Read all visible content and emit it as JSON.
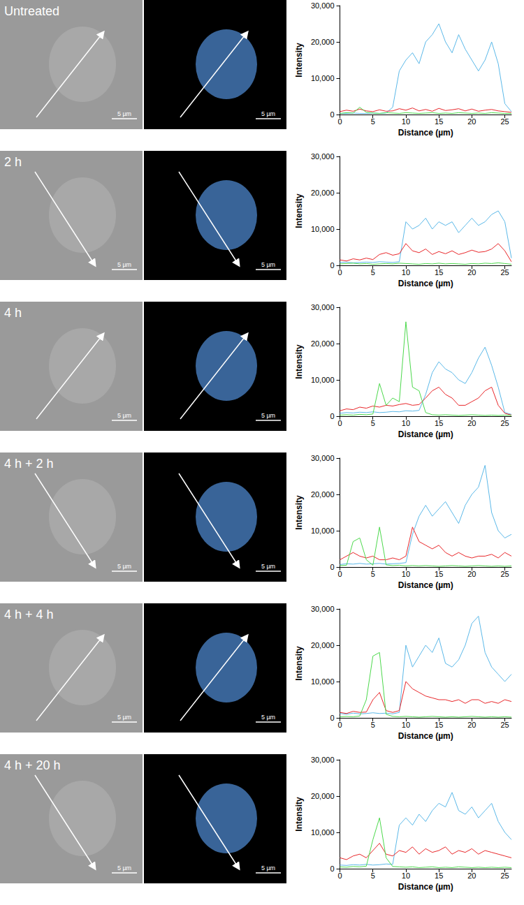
{
  "scale_bar": "5 µm",
  "chart_data": [
    {
      "type": "line",
      "title": "Untreated",
      "x_label": "Distance (µm)",
      "y_label": "Intensity",
      "x": [
        0,
        1,
        2,
        3,
        4,
        5,
        6,
        7,
        8,
        9,
        10,
        11,
        12,
        13,
        14,
        15,
        16,
        17,
        18,
        19,
        20,
        21,
        22,
        23,
        24,
        25,
        26
      ],
      "xlim": [
        0,
        26
      ],
      "xticks": [
        0,
        5,
        10,
        15,
        20,
        25
      ],
      "ylim": [
        0,
        30000
      ],
      "yticks": [
        0,
        10000,
        20000,
        30000
      ],
      "series": [
        {
          "color": "#5bb8e8",
          "values": [
            300,
            300,
            400,
            300,
            300,
            400,
            300,
            400,
            2000,
            12000,
            15000,
            17000,
            14000,
            20000,
            22000,
            25000,
            20000,
            17000,
            22000,
            18000,
            15000,
            12000,
            15000,
            20000,
            14000,
            3000,
            800
          ]
        },
        {
          "color": "#e8272a",
          "values": [
            800,
            1200,
            900,
            1500,
            1000,
            800,
            1300,
            900,
            1000,
            1600,
            1200,
            1800,
            1000,
            1400,
            900,
            1700,
            1100,
            1300,
            1600,
            1000,
            1500,
            900,
            1200,
            1400,
            1000,
            800,
            600
          ]
        },
        {
          "color": "#4cd84c",
          "values": [
            300,
            500,
            400,
            2000,
            600,
            400,
            300,
            500,
            400,
            300,
            500,
            400,
            300,
            400,
            500,
            300,
            400,
            300,
            500,
            400,
            300,
            400,
            300,
            500,
            400,
            300,
            300
          ]
        }
      ]
    },
    {
      "type": "line",
      "title": "2 h",
      "x_label": "Distance (µm)",
      "y_label": "Intensity",
      "x": [
        0,
        1,
        2,
        3,
        4,
        5,
        6,
        7,
        8,
        9,
        10,
        11,
        12,
        13,
        14,
        15,
        16,
        17,
        18,
        19,
        20,
        21,
        22,
        23,
        24,
        25,
        26
      ],
      "xlim": [
        0,
        26
      ],
      "xticks": [
        0,
        5,
        10,
        15,
        20,
        25
      ],
      "ylim": [
        0,
        30000
      ],
      "yticks": [
        0,
        10000,
        20000,
        30000
      ],
      "series": [
        {
          "color": "#5bb8e8",
          "values": [
            800,
            900,
            700,
            800,
            900,
            800,
            1000,
            900,
            800,
            1000,
            12000,
            10000,
            11000,
            13000,
            10000,
            12000,
            11000,
            12000,
            9000,
            11000,
            13000,
            11000,
            12000,
            14000,
            15000,
            12000,
            2000
          ]
        },
        {
          "color": "#e8272a",
          "values": [
            1500,
            1200,
            1800,
            1500,
            2000,
            1600,
            3000,
            3500,
            2800,
            3200,
            6000,
            4000,
            3500,
            4500,
            3000,
            3800,
            3200,
            4000,
            3000,
            3500,
            4200,
            3600,
            3800,
            4500,
            6000,
            4000,
            1000
          ]
        },
        {
          "color": "#4cd84c",
          "values": [
            400,
            500,
            600,
            400,
            500,
            300,
            400,
            500,
            400,
            600,
            500,
            400,
            300,
            500,
            400,
            600,
            400,
            500,
            400,
            300,
            500,
            400,
            600,
            500,
            700,
            500,
            300
          ]
        }
      ]
    },
    {
      "type": "line",
      "title": "4 h",
      "x_label": "Distance (µm)",
      "y_label": "Intensity",
      "x": [
        0,
        1,
        2,
        3,
        4,
        5,
        6,
        7,
        8,
        9,
        10,
        11,
        12,
        13,
        14,
        15,
        16,
        17,
        18,
        19,
        20,
        21,
        22,
        23,
        24,
        25,
        26
      ],
      "xlim": [
        0,
        26
      ],
      "xticks": [
        0,
        5,
        10,
        15,
        20,
        25
      ],
      "ylim": [
        0,
        30000
      ],
      "yticks": [
        0,
        10000,
        20000,
        30000
      ],
      "series": [
        {
          "color": "#5bb8e8",
          "values": [
            800,
            1000,
            900,
            1100,
            1000,
            1200,
            1000,
            1100,
            1300,
            1200,
            1500,
            1400,
            1600,
            6000,
            12000,
            15000,
            13000,
            12000,
            10000,
            9000,
            12000,
            16000,
            19000,
            14000,
            8000,
            1000,
            500
          ]
        },
        {
          "color": "#e8272a",
          "values": [
            1500,
            2000,
            1800,
            2500,
            2200,
            2800,
            2500,
            3000,
            2800,
            3200,
            3500,
            3000,
            3200,
            5000,
            7000,
            8000,
            6000,
            5000,
            3000,
            3000,
            4000,
            5000,
            7000,
            8000,
            3000,
            800,
            300
          ]
        },
        {
          "color": "#4cd84c",
          "values": [
            300,
            400,
            300,
            500,
            400,
            600,
            9000,
            3000,
            5000,
            4000,
            26000,
            8000,
            7000,
            1000,
            400,
            300,
            400,
            300,
            200,
            300,
            400,
            300,
            200,
            300,
            200,
            300,
            200
          ]
        }
      ]
    },
    {
      "type": "line",
      "title": "4 h + 2 h",
      "x_label": "Distance (µm)",
      "y_label": "Intensity",
      "x": [
        0,
        1,
        2,
        3,
        4,
        5,
        6,
        7,
        8,
        9,
        10,
        11,
        12,
        13,
        14,
        15,
        16,
        17,
        18,
        19,
        20,
        21,
        22,
        23,
        24,
        25,
        26
      ],
      "xlim": [
        0,
        26
      ],
      "xticks": [
        0,
        5,
        10,
        15,
        20,
        25
      ],
      "ylim": [
        0,
        30000
      ],
      "yticks": [
        0,
        10000,
        20000,
        30000
      ],
      "series": [
        {
          "color": "#5bb8e8",
          "values": [
            700,
            900,
            800,
            1000,
            800,
            900,
            1000,
            800,
            900,
            1000,
            1200,
            9000,
            14000,
            17000,
            14000,
            16000,
            18000,
            15000,
            12000,
            17000,
            20000,
            22000,
            28000,
            15000,
            10000,
            8000,
            9000
          ]
        },
        {
          "color": "#e8272a",
          "values": [
            2000,
            3000,
            4000,
            3000,
            2500,
            3000,
            2000,
            2000,
            2500,
            2000,
            3000,
            11000,
            7000,
            6000,
            5000,
            6000,
            4000,
            3000,
            4000,
            3000,
            2500,
            3000,
            3000,
            3500,
            2500,
            4000,
            3000
          ]
        },
        {
          "color": "#4cd84c",
          "values": [
            400,
            500,
            7000,
            8000,
            2000,
            500,
            11000,
            600,
            400,
            500,
            300,
            400,
            300,
            400,
            300,
            200,
            300,
            400,
            300,
            200,
            300,
            400,
            300,
            200,
            300,
            200,
            300
          ]
        }
      ]
    },
    {
      "type": "line",
      "title": "4 h + 4 h",
      "x_label": "Distance (µm)",
      "y_label": "Intensity",
      "x": [
        0,
        1,
        2,
        3,
        4,
        5,
        6,
        7,
        8,
        9,
        10,
        11,
        12,
        13,
        14,
        15,
        16,
        17,
        18,
        19,
        20,
        21,
        22,
        23,
        24,
        25,
        26
      ],
      "xlim": [
        0,
        26
      ],
      "xticks": [
        0,
        5,
        10,
        15,
        20,
        25
      ],
      "ylim": [
        0,
        30000
      ],
      "yticks": [
        0,
        10000,
        20000,
        30000
      ],
      "series": [
        {
          "color": "#5bb8e8",
          "values": [
            1200,
            1000,
            1300,
            1100,
            1200,
            1400,
            1200,
            1300,
            1100,
            1500,
            20000,
            14000,
            17000,
            20000,
            18000,
            22000,
            15000,
            14000,
            16000,
            20000,
            26000,
            28000,
            18000,
            14000,
            12000,
            10000,
            12000
          ]
        },
        {
          "color": "#e8272a",
          "values": [
            1500,
            1200,
            1800,
            1500,
            1600,
            5000,
            7000,
            2000,
            1500,
            2000,
            10000,
            8000,
            7000,
            6000,
            5500,
            5000,
            5000,
            4500,
            5000,
            4000,
            5000,
            5000,
            4000,
            4500,
            4000,
            5000,
            4500
          ]
        },
        {
          "color": "#4cd84c",
          "values": [
            300,
            400,
            300,
            500,
            5000,
            17000,
            18000,
            1000,
            400,
            300,
            400,
            300,
            200,
            300,
            400,
            300,
            200,
            300,
            200,
            300,
            400,
            300,
            200,
            300,
            200,
            300,
            200
          ]
        }
      ]
    },
    {
      "type": "line",
      "title": "4 h + 20 h",
      "x_label": "Distance (µm)",
      "y_label": "Intensity",
      "x": [
        0,
        1,
        2,
        3,
        4,
        5,
        6,
        7,
        8,
        9,
        10,
        11,
        12,
        13,
        14,
        15,
        16,
        17,
        18,
        19,
        20,
        21,
        22,
        23,
        24,
        25,
        26
      ],
      "xlim": [
        0,
        26
      ],
      "xticks": [
        0,
        5,
        10,
        15,
        20,
        25
      ],
      "ylim": [
        0,
        30000
      ],
      "yticks": [
        0,
        10000,
        20000,
        30000
      ],
      "series": [
        {
          "color": "#5bb8e8",
          "values": [
            1000,
            900,
            1100,
            1000,
            1200,
            1000,
            1100,
            1300,
            1200,
            12000,
            14000,
            12000,
            15000,
            13000,
            16000,
            18000,
            17000,
            21000,
            16000,
            15000,
            17000,
            14000,
            16000,
            18000,
            13000,
            10000,
            8000
          ]
        },
        {
          "color": "#e8272a",
          "values": [
            3000,
            2500,
            3500,
            4000,
            3000,
            5000,
            7000,
            4000,
            3500,
            5000,
            4500,
            6000,
            4000,
            5500,
            4500,
            5000,
            6000,
            4000,
            5000,
            4500,
            5500,
            4000,
            5000,
            4500,
            4000,
            3500,
            3000
          ]
        },
        {
          "color": "#4cd84c",
          "values": [
            500,
            400,
            600,
            500,
            700,
            8000,
            14000,
            3000,
            600,
            500,
            400,
            500,
            300,
            400,
            500,
            300,
            400,
            300,
            500,
            400,
            300,
            400,
            300,
            400,
            300,
            400,
            300
          ]
        }
      ]
    }
  ]
}
